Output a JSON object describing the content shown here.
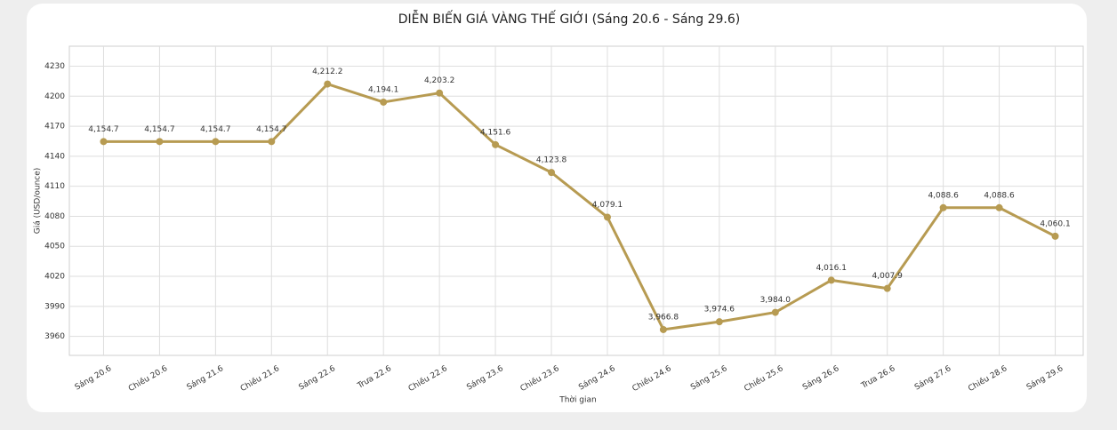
{
  "chart_data": {
    "type": "line",
    "title": "DIỄN BIẾN GIÁ VÀNG THẾ GIỚI (Sáng 20.6 - Sáng 29.6)",
    "x_label": "Thời gian",
    "y_label": "Giá (USD/ounce)",
    "categories": [
      "Sáng 20.6",
      "Chiều 20.6",
      "Sáng 21.6",
      "Chiều 21.6",
      "Sáng 22.6",
      "Trưa 22.6",
      "Chiều 22.6",
      "Sáng 23.6",
      "Chiều 23.6",
      "Sáng 24.6",
      "Chiều 24.6",
      "Sáng 25.6",
      "Chiều 25.6",
      "Sáng 26.6",
      "Trưa 26.6",
      "Sáng 27.6",
      "Chiều 28.6",
      "Sáng 29.6"
    ],
    "values": [
      4154.7,
      4154.7,
      4154.7,
      4154.7,
      4212.2,
      4194.1,
      4203.2,
      4151.6,
      4123.8,
      4079.1,
      3966.8,
      3974.6,
      3984.0,
      4016.1,
      4007.9,
      4088.6,
      4088.6,
      4060.1
    ],
    "value_labels": [
      "4,154.7",
      "4,154.7",
      "4,154.7",
      "4,154.7",
      "4,212.2",
      "4,194.1",
      "4,203.2",
      "4,151.6",
      "4,123.8",
      "4,079.1",
      "3,966.8",
      "3,974.6",
      "3,984.0",
      "4,016.1",
      "4,007.9",
      "4,088.6",
      "4,088.6",
      "4,060.1"
    ],
    "color": "#b79b52",
    "ylim": [
      3941,
      4250
    ],
    "yticks": [
      3960,
      3990,
      4020,
      4050,
      4080,
      4110,
      4140,
      4170,
      4200,
      4230
    ],
    "grid": true
  }
}
